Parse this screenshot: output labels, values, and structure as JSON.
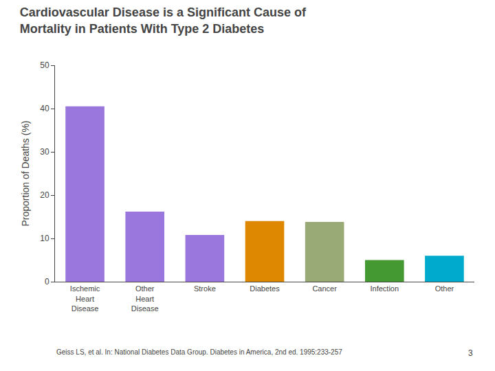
{
  "chart_data": {
    "type": "bar",
    "title": "Cardiovascular Disease is a Significant Cause of\nMortality in Patients With Type 2 Diabetes",
    "categories": [
      "Ischemic\nHeart\nDisease",
      "Other\nHeart\nDisease",
      "Stroke",
      "Diabetes",
      "Cancer",
      "Infection",
      "Other"
    ],
    "values": [
      40.5,
      16.2,
      10.8,
      14.0,
      13.8,
      5.0,
      6.0
    ],
    "colors": [
      "#9977dd",
      "#9977dd",
      "#9977dd",
      "#dd8800",
      "#99aa77",
      "#449933",
      "#00aacc"
    ],
    "ylabel": "Proportion of Deaths (%)",
    "ylim": [
      0,
      50
    ],
    "yticks": [
      0,
      10,
      20,
      30,
      40,
      50
    ],
    "grid": false,
    "annotations": [
      "Geiss LS, et al. In: National Diabetes Data Group. Diabetes in America, 2nd ed. 1995:233-257",
      "3"
    ]
  }
}
